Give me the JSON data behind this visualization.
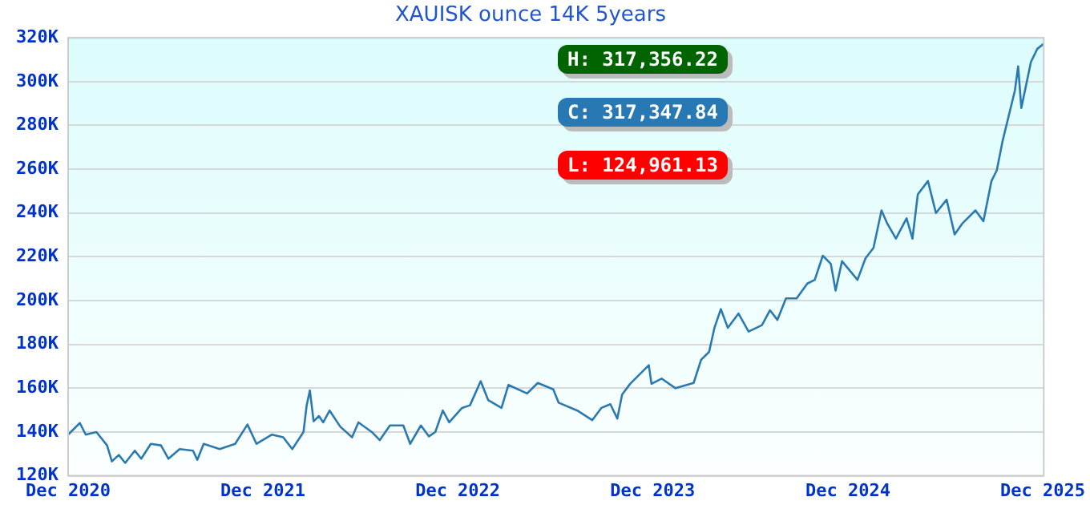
{
  "chart_data": {
    "type": "line",
    "title": "XAUISK ounce 14K 5years",
    "x": [
      "2020-12-01",
      "2020-12-23",
      "2021-01-03",
      "2021-01-23",
      "2021-02-12",
      "2021-02-21",
      "2021-03-06",
      "2021-03-18",
      "2021-04-05",
      "2021-04-17",
      "2021-05-05",
      "2021-05-24",
      "2021-06-07",
      "2021-06-28",
      "2021-07-23",
      "2021-07-31",
      "2021-08-12",
      "2021-09-11",
      "2021-10-10",
      "2021-11-02",
      "2021-11-19",
      "2021-12-18",
      "2022-01-08",
      "2022-01-25",
      "2022-02-15",
      "2022-02-21",
      "2022-02-27",
      "2022-03-06",
      "2022-03-16",
      "2022-03-24",
      "2022-04-05",
      "2022-04-25",
      "2022-05-17",
      "2022-05-29",
      "2022-06-23",
      "2022-07-08",
      "2022-07-27",
      "2022-08-21",
      "2022-09-03",
      "2022-09-23",
      "2022-10-08",
      "2022-10-20",
      "2022-11-03",
      "2022-11-15",
      "2022-12-09",
      "2022-12-24",
      "2023-01-13",
      "2023-01-27",
      "2023-02-21",
      "2023-03-06",
      "2023-04-10",
      "2023-04-30",
      "2023-05-29",
      "2023-06-08",
      "2023-07-13",
      "2023-08-10",
      "2023-08-27",
      "2023-09-13",
      "2023-09-26",
      "2023-10-05",
      "2023-10-20",
      "2023-11-24",
      "2023-11-29",
      "2023-12-18",
      "2024-01-13",
      "2024-02-16",
      "2024-03-01",
      "2024-03-16",
      "2024-03-26",
      "2024-04-07",
      "2024-04-20",
      "2024-05-10",
      "2024-05-29",
      "2024-06-23",
      "2024-07-08",
      "2024-07-22",
      "2024-08-07",
      "2024-08-27",
      "2024-09-16",
      "2024-09-30",
      "2024-10-15",
      "2024-10-30",
      "2024-11-08",
      "2024-11-20",
      "2024-12-19",
      "2025-01-03",
      "2025-01-18",
      "2025-02-02",
      "2025-02-12",
      "2025-03-01",
      "2025-03-21",
      "2025-04-01",
      "2025-04-11",
      "2025-04-30",
      "2025-05-15",
      "2025-06-04",
      "2025-06-19",
      "2025-07-03",
      "2025-07-28",
      "2025-08-12",
      "2025-08-27",
      "2025-09-06",
      "2025-09-17",
      "2025-10-10",
      "2025-10-16",
      "2025-10-22",
      "2025-11-09",
      "2025-11-21",
      "2025-12-03"
    ],
    "series": [
      {
        "color": "#2a7ab0",
        "values": [
          138800,
          144100,
          138800,
          140000,
          133900,
          126600,
          129500,
          125900,
          131500,
          127800,
          134600,
          133900,
          127800,
          132200,
          131500,
          127300,
          134600,
          132200,
          134600,
          143400,
          134600,
          138800,
          137600,
          132200,
          140000,
          152200,
          159000,
          144900,
          147300,
          144400,
          149800,
          142400,
          137600,
          144400,
          140000,
          136300,
          143000,
          143000,
          134600,
          143000,
          138000,
          140000,
          149800,
          144400,
          151000,
          152200,
          163200,
          154600,
          151000,
          161500,
          157600,
          162400,
          159500,
          153400,
          149800,
          145400,
          151000,
          152700,
          146100,
          157100,
          162000,
          170500,
          162000,
          164400,
          160000,
          162400,
          173000,
          176600,
          187600,
          196100,
          187600,
          194100,
          185900,
          188800,
          195600,
          191200,
          201000,
          201000,
          207800,
          209500,
          220500,
          216800,
          204600,
          218000,
          209500,
          219300,
          224100,
          241200,
          235600,
          228300,
          237600,
          228300,
          248500,
          254600,
          240000,
          246100,
          230200,
          235100,
          241200,
          236300,
          254600,
          259500,
          273000,
          296000,
          307000,
          288000,
          309000,
          315000,
          317300
        ]
      }
    ],
    "xlim": [
      "2020-12-01",
      "2025-12-03"
    ],
    "xticks": [
      {
        "value": "2020-12-01",
        "label": "Dec 2020"
      },
      {
        "value": "2021-12-01",
        "label": "Dec 2021"
      },
      {
        "value": "2022-12-01",
        "label": "Dec 2022"
      },
      {
        "value": "2023-12-01",
        "label": "Dec 2023"
      },
      {
        "value": "2024-12-01",
        "label": "Dec 2024"
      },
      {
        "value": "2025-12-01",
        "label": "Dec 2025"
      }
    ],
    "ylim": [
      120000,
      320000
    ],
    "yticks": [
      {
        "value": 120000,
        "label": "120K"
      },
      {
        "value": 140000,
        "label": "140K"
      },
      {
        "value": 160000,
        "label": "160K"
      },
      {
        "value": 180000,
        "label": "180K"
      },
      {
        "value": 200000,
        "label": "200K"
      },
      {
        "value": 220000,
        "label": "220K"
      },
      {
        "value": 240000,
        "label": "240K"
      },
      {
        "value": 260000,
        "label": "260K"
      },
      {
        "value": 280000,
        "label": "280K"
      },
      {
        "value": 300000,
        "label": "300K"
      },
      {
        "value": 320000,
        "label": "320K"
      }
    ],
    "grid": "y",
    "marker": "none",
    "line_style": "solid",
    "legend": false,
    "annotations": [
      "H: 317,356.22",
      "C: 317,347.84",
      "L: 124,961.13"
    ]
  }
}
